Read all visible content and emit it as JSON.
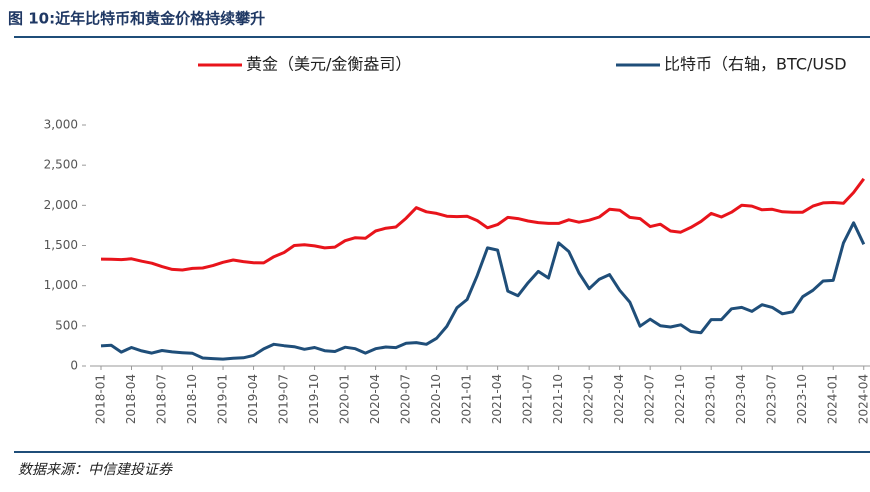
{
  "chart_data": {
    "type": "line",
    "title": "图 10:近年比特币和黄金价格持续攀升",
    "source": "数据来源：中信建投证券",
    "categories": [
      "2018-01",
      null,
      null,
      "2018-04",
      null,
      null,
      "2018-07",
      null,
      null,
      "2018-10",
      null,
      null,
      "2019-01",
      null,
      null,
      "2019-04",
      null,
      null,
      "2019-07",
      null,
      null,
      "2019-10",
      null,
      null,
      "2020-01",
      null,
      null,
      "2020-04",
      null,
      null,
      "2020-07",
      null,
      null,
      "2020-10",
      null,
      null,
      "2021-01",
      null,
      null,
      "2021-04",
      null,
      null,
      "2021-07",
      null,
      null,
      "2021-10",
      null,
      null,
      "2022-01",
      null,
      null,
      "2022-04",
      null,
      null,
      "2022-07",
      null,
      null,
      "2022-10",
      null,
      null,
      "2023-01",
      null,
      null,
      "2023-04",
      null,
      null,
      "2023-07",
      null,
      null,
      "2023-10",
      null,
      null,
      "2024-01",
      null,
      null,
      "2024-04"
    ],
    "series": [
      {
        "name": "黄金（美元/金衡盎司）",
        "color": "#e8141b",
        "values": [
          1331,
          1330,
          1325,
          1335,
          1305,
          1280,
          1237,
          1202,
          1195,
          1215,
          1220,
          1250,
          1291,
          1320,
          1300,
          1285,
          1283,
          1360,
          1413,
          1500,
          1510,
          1495,
          1470,
          1480,
          1560,
          1597,
          1590,
          1680,
          1715,
          1730,
          1840,
          1970,
          1920,
          1900,
          1865,
          1860,
          1865,
          1810,
          1720,
          1760,
          1850,
          1835,
          1805,
          1785,
          1775,
          1775,
          1820,
          1790,
          1815,
          1855,
          1950,
          1940,
          1850,
          1835,
          1735,
          1765,
          1680,
          1665,
          1725,
          1800,
          1900,
          1855,
          1915,
          2000,
          1990,
          1945,
          1950,
          1920,
          1915,
          1915,
          1990,
          2030,
          2035,
          2025,
          2160,
          2330
        ]
      },
      {
        "name": "比特币（右轴，BTC/USD",
        "color": "#1f4e79",
        "axis": "y2",
        "values": [
          10000,
          10300,
          6900,
          9200,
          7500,
          6400,
          7700,
          7000,
          6600,
          6300,
          4000,
          3700,
          3450,
          3850,
          4100,
          5300,
          8500,
          10800,
          10100,
          9600,
          8300,
          9200,
          7600,
          7200,
          9350,
          8600,
          6400,
          8600,
          9450,
          9150,
          11350,
          11650,
          10800,
          13800,
          19700,
          29000,
          33100,
          45100,
          58800,
          57700,
          37300,
          35000,
          41500,
          47100,
          43800,
          61300,
          57000,
          46300,
          38500,
          43200,
          45500,
          37700,
          31800,
          19800,
          23300,
          20000,
          19400,
          20500,
          17200,
          16600,
          23100,
          23100,
          28500,
          29200,
          27200,
          30500,
          29200,
          26000,
          27000,
          34500,
          37700,
          42300,
          42600,
          61200,
          71300,
          60600
        ]
      }
    ],
    "ylim": [
      0,
      3000
    ],
    "yticks": [
      0,
      500,
      {
        "value": 1000,
        "label": "1,000"
      },
      {
        "value": 1500,
        "label": "1,500"
      },
      {
        "value": 2000,
        "label": "2,000"
      },
      {
        "value": 2500,
        "label": "2,500"
      },
      {
        "value": 3000,
        "label": "3,000"
      }
    ],
    "y2lim": [
      0,
      120000
    ]
  }
}
